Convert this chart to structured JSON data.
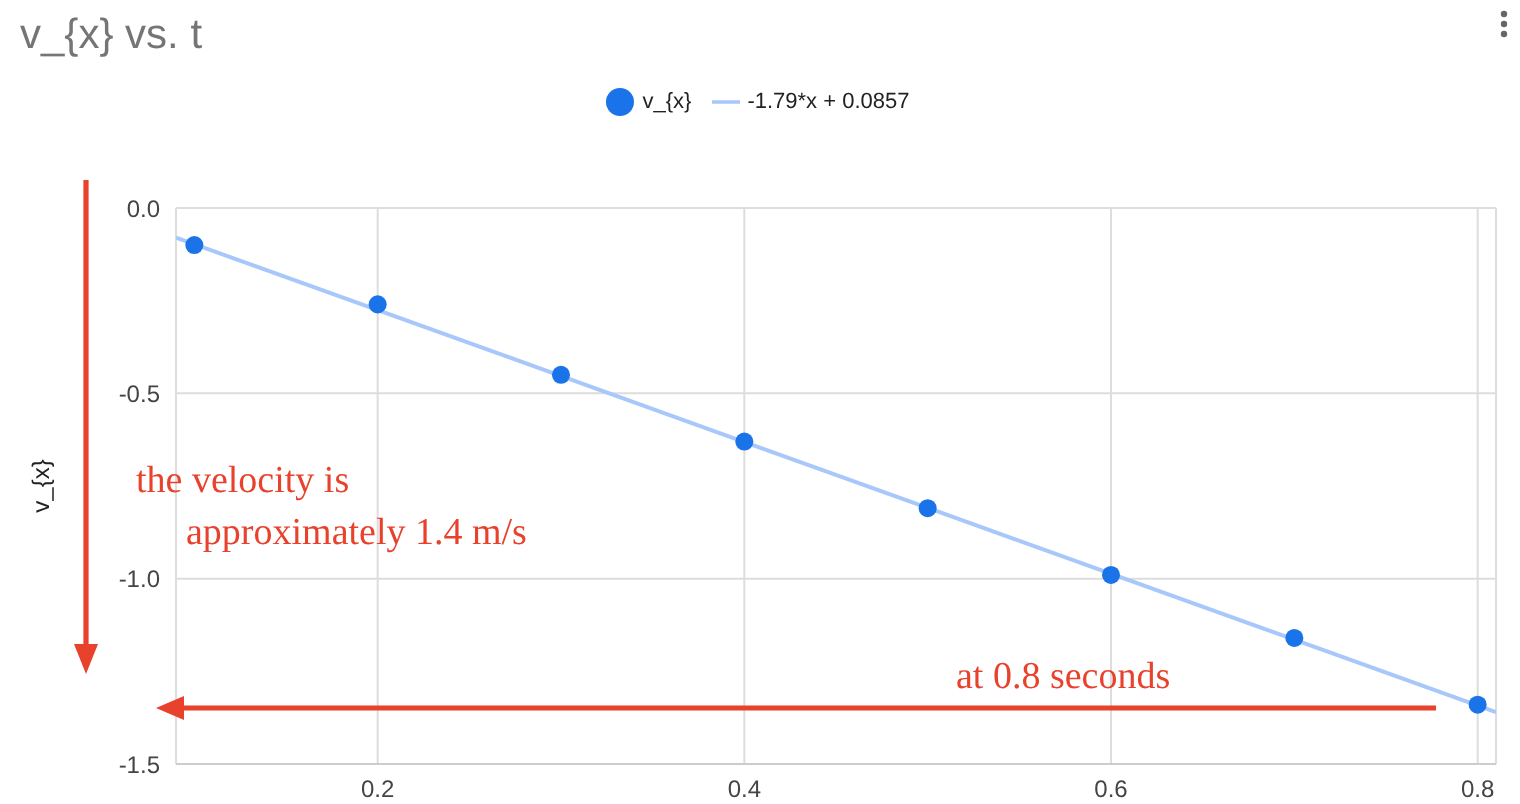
{
  "chart_data": {
    "type": "scatter",
    "title": "v_{x} vs. t",
    "ylabel": "v_{x}",
    "x": [
      0.1,
      0.2,
      0.3,
      0.4,
      0.5,
      0.6,
      0.7,
      0.8
    ],
    "series": [
      {
        "name": "v_{x}",
        "color": "#1a73e8",
        "values": [
          -0.1,
          -0.26,
          -0.45,
          -0.63,
          -0.81,
          -0.99,
          -1.16,
          -1.34
        ]
      },
      {
        "name": "-1.79*x + 0.0857",
        "type": "line",
        "marker": "none",
        "color": "#a8c7fa",
        "x": [
          0.09,
          0.81
        ],
        "values": [
          -0.08,
          -1.36
        ]
      }
    ],
    "xlim": [
      0.09,
      0.81
    ],
    "xticks": [
      0.2,
      0.4,
      0.6,
      0.8
    ],
    "ylim": [
      -1.5,
      0
    ],
    "yticks": [
      {
        "value": 0,
        "label": "0.0"
      },
      {
        "value": -0.5,
        "label": "-0.5"
      },
      {
        "value": -1,
        "label": "-1.0"
      },
      {
        "value": -1.5,
        "label": "-1.5"
      }
    ],
    "grid": true,
    "legend": "top",
    "marker": "circle",
    "line_style": "solid",
    "annotations": [
      "the velocity is\napproximately 1.4 m/s",
      "at 0.8 seconds"
    ]
  }
}
